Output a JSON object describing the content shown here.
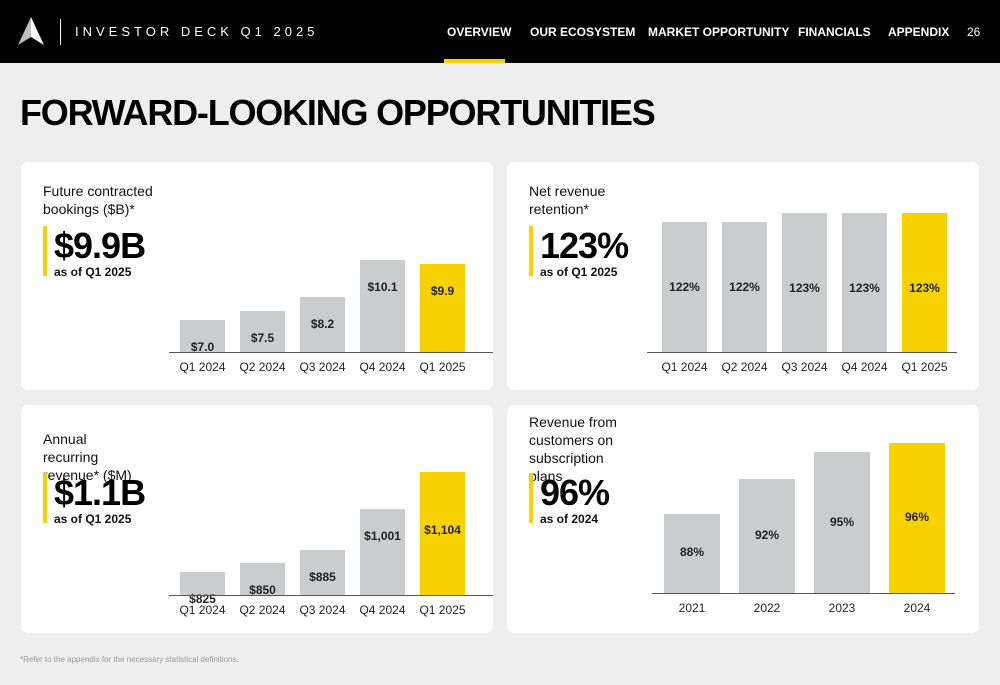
{
  "header": {
    "deck_title": "INVESTOR DECK Q1 2025",
    "nav": [
      {
        "label": "OVERVIEW",
        "active": true
      },
      {
        "label": "OUR ECOSYSTEM",
        "active": false
      },
      {
        "label": "MARKET OPPORTUNITY",
        "active": false
      },
      {
        "label": "FINANCIALS",
        "active": false
      },
      {
        "label": "APPENDIX",
        "active": false
      }
    ],
    "page_number": "26",
    "accent_color": "#f8d200"
  },
  "page_title": "FORWARD-LOOKING OPPORTUNITIES",
  "cards": [
    {
      "label": "Future contracted bookings ($B)*",
      "kpi": "$9.9B",
      "kpi_sub": "as of Q1 2025"
    },
    {
      "label": "Net revenue retention*",
      "kpi": "123%",
      "kpi_sub": "as of Q1 2025"
    },
    {
      "label": "Annual recurring revenue* ($M)",
      "kpi": "$1.1B",
      "kpi_sub": "as of Q1 2025"
    },
    {
      "label": "Revenue from customers on subscription plans",
      "kpi": "96%",
      "kpi_sub": "as of 2024"
    }
  ],
  "chart_data": [
    {
      "type": "bar",
      "categories": [
        "Q1 2024",
        "Q2 2024",
        "Q3 2024",
        "Q4 2024",
        "Q1 2025"
      ],
      "values": [
        7.0,
        7.5,
        8.2,
        10.1,
        9.9
      ],
      "labels": [
        "$7.0",
        "$7.5",
        "$8.2",
        "$10.1",
        "$9.9"
      ],
      "highlight_index": 4,
      "colors": {
        "default": "#cbccce",
        "highlight": "#f8d200"
      }
    },
    {
      "type": "bar",
      "categories": [
        "Q1 2024",
        "Q2 2024",
        "Q3 2024",
        "Q4 2024",
        "Q1 2025"
      ],
      "values": [
        122,
        122,
        123,
        123,
        123
      ],
      "labels": [
        "122%",
        "122%",
        "123%",
        "123%",
        "123%"
      ],
      "highlight_index": 4,
      "colors": {
        "default": "#cbccce",
        "highlight": "#f8d200"
      }
    },
    {
      "type": "bar",
      "categories": [
        "Q1 2024",
        "Q2 2024",
        "Q3 2024",
        "Q4 2024",
        "Q1 2025"
      ],
      "values": [
        825,
        850,
        885,
        1001,
        1104
      ],
      "labels": [
        "$825",
        "$850",
        "$885",
        "$1,001",
        "$1,104"
      ],
      "highlight_index": 4,
      "colors": {
        "default": "#cbccce",
        "highlight": "#f8d200"
      }
    },
    {
      "type": "bar",
      "categories": [
        "2021",
        "2022",
        "2023",
        "2024"
      ],
      "values": [
        88,
        92,
        95,
        96
      ],
      "labels": [
        "88%",
        "92%",
        "95%",
        "96%"
      ],
      "highlight_index": 3,
      "colors": {
        "default": "#cbccce",
        "highlight": "#f8d200"
      }
    }
  ],
  "footnote": "*Refer to the appendix for the necessary statistical definitions."
}
